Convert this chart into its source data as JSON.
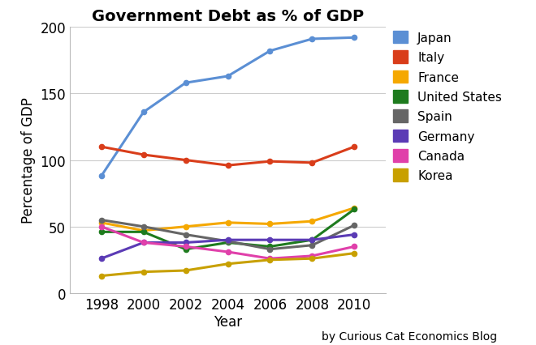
{
  "title": "Government Debt as % of GDP",
  "xlabel": "Year",
  "ylabel": "Percentage of GDP",
  "attribution": "by Curious Cat Economics Blog",
  "years": [
    1998,
    2000,
    2002,
    2004,
    2006,
    2008,
    2010
  ],
  "series": [
    {
      "name": "Japan",
      "color": "#5B8FD4",
      "values": [
        88,
        136,
        158,
        163,
        182,
        191,
        192
      ]
    },
    {
      "name": "Italy",
      "color": "#D93D1A",
      "values": [
        110,
        104,
        100,
        96,
        99,
        98,
        110
      ]
    },
    {
      "name": "France",
      "color": "#F5A800",
      "values": [
        53,
        47,
        50,
        53,
        52,
        54,
        64
      ]
    },
    {
      "name": "United States",
      "color": "#1E7B1E",
      "values": [
        46,
        46,
        33,
        38,
        35,
        40,
        63
      ]
    },
    {
      "name": "Spain",
      "color": "#666666",
      "values": [
        55,
        50,
        44,
        39,
        33,
        36,
        51
      ]
    },
    {
      "name": "Germany",
      "color": "#5B3BB5",
      "values": [
        26,
        38,
        38,
        40,
        40,
        40,
        44
      ]
    },
    {
      "name": "Canada",
      "color": "#E040AA",
      "values": [
        50,
        38,
        35,
        31,
        26,
        28,
        35
      ]
    },
    {
      "name": "Korea",
      "color": "#C8A000",
      "values": [
        13,
        16,
        17,
        22,
        25,
        26,
        30
      ]
    }
  ],
  "ylim": [
    0,
    200
  ],
  "yticks": [
    0,
    50,
    100,
    150,
    200
  ],
  "xlim": [
    1996.5,
    2011.5
  ],
  "background_color": "#FFFFFF",
  "grid_color": "#CCCCCC",
  "title_fontsize": 14,
  "axis_label_fontsize": 12,
  "tick_fontsize": 12,
  "legend_fontsize": 11,
  "attribution_fontsize": 10
}
